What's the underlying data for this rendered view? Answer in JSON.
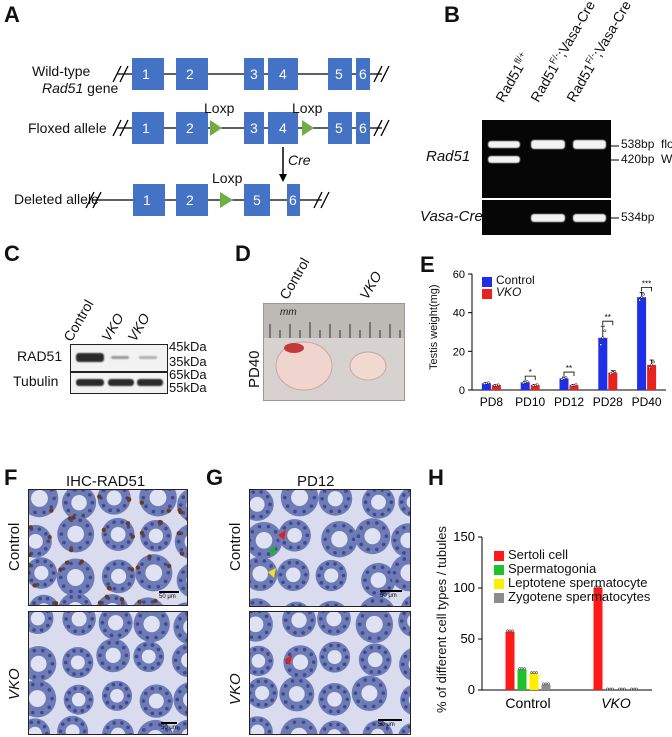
{
  "panels": {
    "A": "A",
    "B": "B",
    "C": "C",
    "D": "D",
    "E": "E",
    "F": "F",
    "G": "G",
    "H": "H"
  },
  "panelA": {
    "wt_line1": "Wild-type",
    "wt_line2": "Rad51",
    "wt_line3": " gene",
    "floxed": "Floxed allele",
    "deleted": "Deleted allele",
    "loxp": "Loxp",
    "cre": "Cre",
    "exons_wt": [
      "1",
      "2",
      "3",
      "4",
      "5",
      "6"
    ],
    "exons_deleted": [
      "1",
      "2",
      "5",
      "6"
    ],
    "colors": {
      "exon": "#4472c4",
      "loxp": "#70ad47"
    }
  },
  "panelB": {
    "lanes": [
      "Rad51fl/+",
      "Rad51F/-;Vasa-Cre",
      "Rad51F/-;Vasa-Cre"
    ],
    "lane1_base": "Rad51",
    "lane1_sup": "fl/+",
    "lane2_base": "Rad51",
    "lane2_sup": "F/-",
    "lane2_tail": ";Vasa-Cre",
    "lane3_base": "Rad51",
    "lane3_sup": "F/-",
    "lane3_tail": ";Vasa-Cre",
    "gene1": "Rad51",
    "gene2": "Vasa-Cre",
    "b538": "538bp",
    "floxed": "floxed",
    "b420": "420bp",
    "wt": "WT",
    "b534": "534bp"
  },
  "panelC": {
    "lanes": [
      "Control",
      "VKO",
      "VKO"
    ],
    "rad51": "RAD51",
    "tubulin": "Tubulin",
    "kda45": "45kDa",
    "kda35": "35kDa",
    "kda65": "65kDa",
    "kda55": "55kDa"
  },
  "panelD": {
    "control": "Control",
    "vko": "VKO",
    "pd40": "PD40",
    "mm": "mm"
  },
  "panelE": {
    "ylabel": "Testis weight(mg)",
    "legend_control": "Control",
    "legend_vko": "VKO",
    "sig": [
      "*",
      "**",
      "**",
      "***"
    ]
  },
  "panelF": {
    "title": "IHC-RAD51",
    "row1": "Control",
    "row2": "VKO",
    "scale": "50 μm"
  },
  "panelG": {
    "title": "PD12",
    "row1": "Control",
    "row2": "VKO",
    "scale": "50 μm"
  },
  "panelH": {
    "ylabel": "% of different cell types / tubules",
    "legend": [
      "Sertoli cell",
      "Spermatogonia",
      "Leptotene spermatocyte",
      "Zygotene spermatocytes"
    ]
  },
  "chart_data": [
    {
      "type": "bar",
      "categories": [
        "PD8",
        "PD10",
        "PD12",
        "PD28",
        "PD40"
      ],
      "series": [
        {
          "name": "Control",
          "color": "#1f2ee8",
          "values": [
            3.5,
            4,
            6,
            27,
            48
          ],
          "errors": [
            0.4,
            0.6,
            0.7,
            6,
            2.5
          ]
        },
        {
          "name": "VKO",
          "color": "#e8231f",
          "values": [
            2.5,
            2.5,
            2.5,
            9,
            13
          ],
          "errors": [
            0.3,
            0.4,
            0.4,
            1,
            2.5
          ]
        }
      ],
      "ylabel": "Testis weight(mg)",
      "yticks": [
        0,
        20,
        40,
        60
      ],
      "ylim": [
        0,
        60
      ],
      "legend": "top-left"
    },
    {
      "type": "bar",
      "categories": [
        "Control",
        "VKO"
      ],
      "series": [
        {
          "name": "Sertoli cell",
          "color": "#ff1a1a",
          "values": [
            57,
            100
          ]
        },
        {
          "name": "Spermatogonia",
          "color": "#1fc12b",
          "values": [
            20,
            0
          ]
        },
        {
          "name": "Leptotene spermatocyte",
          "color": "#ffee00",
          "values": [
            16,
            0
          ]
        },
        {
          "name": "Zygotene spermatocytes",
          "color": "#8c8c8c",
          "values": [
            5,
            0
          ]
        }
      ],
      "ylabel": "% of different cell types / tubules",
      "yticks": [
        0,
        50,
        100,
        150
      ],
      "ylim": [
        0,
        150
      ],
      "legend": "top-left"
    }
  ]
}
